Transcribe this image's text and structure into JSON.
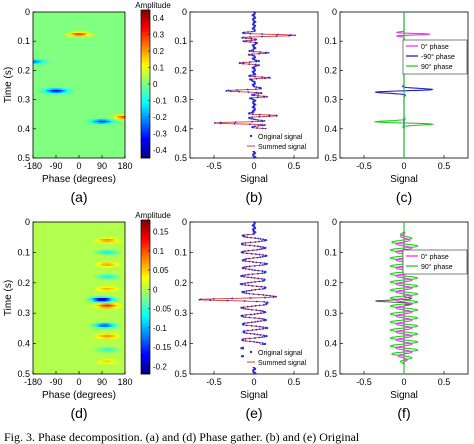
{
  "chart_data": [
    {
      "id": "a",
      "type": "heatmap",
      "panel_label": "(a)",
      "xlabel": "Phase (degrees)",
      "ylabel": "Time (s)",
      "xlim": [
        -180,
        180
      ],
      "ylim": [
        0,
        0.5
      ],
      "xticks": [
        "-180",
        "-90",
        "0",
        "90",
        "180"
      ],
      "yticks": [
        "0",
        "0.1",
        "0.2",
        "0.3",
        "0.4",
        "0.5"
      ],
      "colorbar_title": "Amplitude",
      "colorbar_ticks": [
        "0.4",
        "0.3",
        "0.2",
        "0.1",
        "0",
        "-0.1",
        "-0.2",
        "-0.3",
        "-0.4"
      ],
      "clim": [
        -0.45,
        0.45
      ],
      "blobs": [
        {
          "phase": 0,
          "time": 0.076,
          "amp": 0.3
        },
        {
          "phase": -180,
          "time": 0.17,
          "amp": -0.25
        },
        {
          "phase": -90,
          "time": 0.27,
          "amp": -0.35
        },
        {
          "phase": 90,
          "time": 0.375,
          "amp": -0.3
        },
        {
          "phase": 180,
          "time": 0.36,
          "amp": 0.3
        }
      ]
    },
    {
      "id": "b",
      "type": "line",
      "panel_label": "(b)",
      "xlabel": "Signal",
      "xlim": [
        -0.8,
        0.8
      ],
      "ylim": [
        0,
        0.5
      ],
      "xticks": [
        "-0.5",
        "0",
        "0.5"
      ],
      "yticks": [
        "0",
        "0.1",
        "0.2",
        "0.3",
        "0.4",
        "0.5"
      ],
      "legend": [
        "Original signal",
        "Summed signal"
      ],
      "legend_position": "bottom-right",
      "events": [
        {
          "time": 0.08,
          "amp": 0.5,
          "width": 0.008
        },
        {
          "time": 0.1,
          "amp": -0.12,
          "width": 0.006
        },
        {
          "time": 0.14,
          "amp": 0.18,
          "width": 0.006
        },
        {
          "time": 0.175,
          "amp": -0.18,
          "width": 0.007
        },
        {
          "time": 0.225,
          "amp": 0.2,
          "width": 0.006
        },
        {
          "time": 0.27,
          "amp": -0.35,
          "width": 0.008
        },
        {
          "time": 0.29,
          "amp": 0.15,
          "width": 0.006
        },
        {
          "time": 0.355,
          "amp": 0.3,
          "width": 0.007
        },
        {
          "time": 0.38,
          "amp": -0.5,
          "width": 0.007
        },
        {
          "time": 0.4,
          "amp": 0.15,
          "width": 0.006
        }
      ]
    },
    {
      "id": "c",
      "type": "line",
      "panel_label": "(c)",
      "xlabel": "Signal",
      "xlim": [
        -0.8,
        0.8
      ],
      "ylim": [
        0,
        0.5
      ],
      "xticks": [
        "-0.5",
        "0",
        "0.5"
      ],
      "yticks": [
        "0",
        "0.1",
        "0.2",
        "0.3",
        "0.4",
        "0.5"
      ],
      "legend_position": "top-right",
      "series": [
        {
          "name": "0° phase",
          "color": "#e83ae8",
          "events": [
            {
              "time": 0.076,
              "amp": 0.32,
              "width": 0.006,
              "kind": "even"
            }
          ]
        },
        {
          "name": "-90° phase",
          "color": "#1f1fd4",
          "events": [
            {
              "time": 0.27,
              "amp": -0.32,
              "width": 0.009,
              "kind": "odd"
            }
          ]
        },
        {
          "name": "90° phase",
          "color": "#22cc22",
          "events": [
            {
              "time": 0.38,
              "amp": 0.32,
              "width": 0.008,
              "kind": "odd"
            }
          ]
        }
      ]
    },
    {
      "id": "d",
      "type": "heatmap",
      "panel_label": "(d)",
      "xlabel": "Phase (degrees)",
      "ylabel": "Time (s)",
      "xlim": [
        -180,
        180
      ],
      "ylim": [
        0,
        0.5
      ],
      "xticks": [
        "-180",
        "-90",
        "0",
        "90",
        "180"
      ],
      "yticks": [
        "0",
        "0.1",
        "0.2",
        "0.3",
        "0.4",
        "0.5"
      ],
      "colorbar_title": "Amplitude",
      "colorbar_ticks": [
        "0.15",
        "0.1",
        "0.05",
        "0",
        "-0.05",
        "-0.1",
        "-0.15",
        "-0.2"
      ],
      "clim": [
        -0.22,
        0.18
      ],
      "blobs": [
        {
          "phase": 110,
          "time": 0.06,
          "amp": 0.08
        },
        {
          "phase": 110,
          "time": 0.1,
          "amp": -0.08
        },
        {
          "phase": 110,
          "time": 0.14,
          "amp": 0.07
        },
        {
          "phase": 110,
          "time": 0.18,
          "amp": -0.07
        },
        {
          "phase": 110,
          "time": 0.22,
          "amp": 0.06
        },
        {
          "phase": 90,
          "time": 0.255,
          "amp": -0.22
        },
        {
          "phase": 110,
          "time": 0.275,
          "amp": 0.12
        },
        {
          "phase": 100,
          "time": 0.34,
          "amp": -0.15
        },
        {
          "phase": 110,
          "time": 0.375,
          "amp": 0.08
        },
        {
          "phase": 110,
          "time": 0.42,
          "amp": -0.06
        },
        {
          "phase": 110,
          "time": 0.46,
          "amp": 0.05
        }
      ]
    },
    {
      "id": "e",
      "type": "line",
      "panel_label": "(e)",
      "xlabel": "Signal",
      "xlim": [
        -0.8,
        0.8
      ],
      "ylim": [
        0,
        0.5
      ],
      "xticks": [
        "-0.5",
        "0",
        "0.5"
      ],
      "yticks": [
        "0",
        "0.1",
        "0.2",
        "0.3",
        "0.4",
        "0.5"
      ],
      "legend": [
        "Original signal",
        "Summed signal"
      ],
      "legend_position": "bottom-right",
      "osc_amp": 0.15,
      "osc_freq": 38,
      "osc_range": [
        0.04,
        0.46
      ],
      "events": [
        {
          "time": 0.255,
          "amp": -0.55,
          "width": 0.008
        }
      ]
    },
    {
      "id": "f",
      "type": "line",
      "panel_label": "(f)",
      "xlabel": "Signal",
      "xlim": [
        -0.8,
        0.8
      ],
      "ylim": [
        0,
        0.5
      ],
      "xticks": [
        "-0.5",
        "0",
        "0.5"
      ],
      "yticks": [
        "0",
        "0.1",
        "0.2",
        "0.3",
        "0.4",
        "0.5"
      ],
      "legend_position": "top-right",
      "series": [
        {
          "name": "0° phase",
          "color": "#e83ae8",
          "osc_amp": 0.1,
          "osc_freq": 38,
          "phase": 0
        },
        {
          "name": "90° phase",
          "color": "#22cc22",
          "osc_amp": 0.17,
          "osc_freq": 38,
          "phase": 1.57
        }
      ],
      "black_events": [
        {
          "time": 0.26,
          "amp": -0.35,
          "width": 0.008
        }
      ]
    }
  ],
  "caption": "Fig. 3.   Phase decomposition. (a) and (d) Phase gather. (b) and (e) Original"
}
